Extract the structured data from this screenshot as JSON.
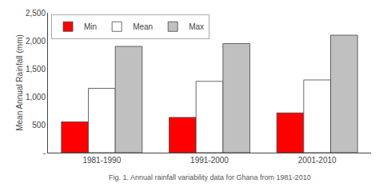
{
  "chart_data": {
    "type": "bar",
    "categories": [
      "1981-1990",
      "1991-2000",
      "2001-2010"
    ],
    "series": [
      {
        "name": "Min",
        "color": "#FF0000",
        "values": [
          550,
          630,
          710
        ]
      },
      {
        "name": "Mean",
        "color": "#FFFFFF",
        "values": [
          1150,
          1275,
          1300
        ]
      },
      {
        "name": "Max",
        "color": "#C0C0C0",
        "values": [
          1900,
          1950,
          2100
        ]
      }
    ],
    "ylabel": "Mean Annual Rainfall (mm)",
    "ylim": [
      0,
      2500
    ],
    "yticks": [
      {
        "value": 0,
        "label": "-"
      },
      500,
      {
        "value": 1000,
        "label": "1,000"
      },
      {
        "value": 1500,
        "label": "1,500"
      },
      {
        "value": 2000,
        "label": "2,000"
      },
      {
        "value": 2500,
        "label": "2,500"
      }
    ],
    "legend": "upper left",
    "grid": false,
    "annotations": [
      "Fig. 1. Annual rainfall variability data for Ghana from 1981-2010"
    ]
  }
}
